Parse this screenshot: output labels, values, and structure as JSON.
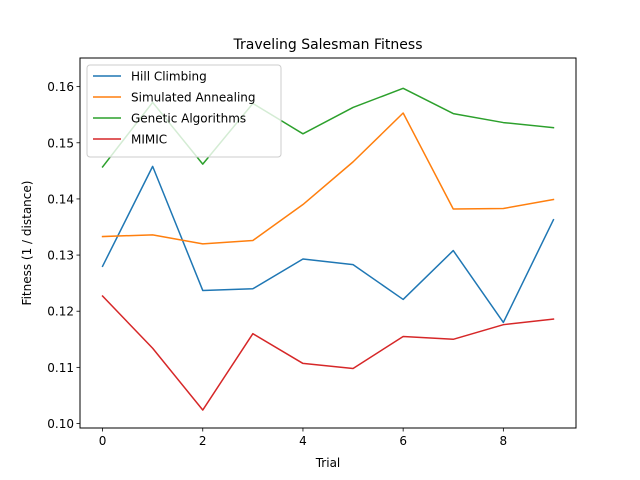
{
  "chart_data": {
    "type": "line",
    "title": "Traveling Salesman Fitness",
    "xlabel": "Trial",
    "ylabel": "Fitness (1 / distance)",
    "x": [
      0,
      1,
      2,
      3,
      4,
      5,
      6,
      7,
      8,
      9
    ],
    "xlim": [
      -0.45,
      9.45
    ],
    "ylim": [
      0.0992,
      0.1651
    ],
    "xticks": [
      "0",
      "2",
      "4",
      "6",
      "8"
    ],
    "yticks": [
      "0.10",
      "0.11",
      "0.12",
      "0.13",
      "0.14",
      "0.15",
      "0.16"
    ],
    "grid": false,
    "legend_position": "top-left",
    "series": [
      {
        "name": "Hill Climbing",
        "color": "#1f77b4",
        "values": [
          0.128,
          0.1458,
          0.1237,
          0.124,
          0.1293,
          0.1283,
          0.1221,
          0.1308,
          0.118,
          0.1363
        ]
      },
      {
        "name": "Simulated Annealing",
        "color": "#ff7f0e",
        "values": [
          0.1333,
          0.1336,
          0.132,
          0.1326,
          0.139,
          0.1466,
          0.1553,
          0.1382,
          0.1383,
          0.1399
        ]
      },
      {
        "name": "Genetic Algorithms",
        "color": "#2ca02c",
        "values": [
          0.1457,
          0.1572,
          0.1462,
          0.157,
          0.1516,
          0.1563,
          0.1597,
          0.1552,
          0.1536,
          0.1527
        ]
      },
      {
        "name": "MIMIC",
        "color": "#d62728",
        "values": [
          0.1227,
          0.1134,
          0.1024,
          0.116,
          0.1107,
          0.1098,
          0.1155,
          0.115,
          0.1176,
          0.1186
        ]
      }
    ]
  }
}
